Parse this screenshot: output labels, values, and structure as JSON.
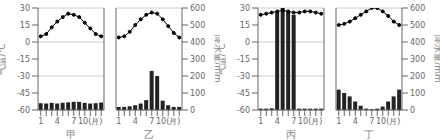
{
  "chart_data": [
    {
      "type": "bar",
      "xlabel": "甲",
      "ylabel": "气温/℃",
      "categories": [
        "1",
        null,
        null,
        "4",
        null,
        null,
        "7",
        null,
        null,
        "10(月)",
        null,
        null
      ],
      "series": [
        {
          "type": "bar",
          "axis": "y2",
          "color": "#222222",
          "values": [
            40,
            38,
            42,
            38,
            42,
            45,
            48,
            48,
            42,
            38,
            40,
            44
          ]
        },
        {
          "type": "line",
          "color": "black",
          "marker": "circle",
          "values": [
            5,
            7,
            13,
            18,
            22,
            25,
            24,
            22,
            17,
            12,
            7,
            5
          ]
        }
      ],
      "ylim": [
        -60,
        30
      ],
      "yticks": [
        30,
        15,
        0,
        -15,
        -30,
        -45,
        -60
      ],
      "y2lim": [
        0,
        600
      ],
      "grid": true
    },
    {
      "type": "bar",
      "xlabel": "乙",
      "y2label": "降水量/mm",
      "categories": [
        "1",
        null,
        null,
        "4",
        null,
        null,
        "7",
        null,
        null,
        "10(月)",
        null,
        null
      ],
      "series": [
        {
          "type": "bar",
          "axis": "y2",
          "color": "#222222",
          "values": [
            18,
            18,
            22,
            28,
            38,
            58,
            230,
            200,
            55,
            28,
            18,
            18
          ]
        },
        {
          "type": "line",
          "color": "black",
          "marker": "circle",
          "values": [
            4,
            5,
            9,
            15,
            20,
            24,
            26,
            25,
            20,
            14,
            8,
            4
          ]
        }
      ],
      "ylim": [
        -60,
        30
      ],
      "yticks": [
        30,
        15,
        0,
        -15,
        -30,
        -45,
        -60
      ],
      "y2lim": [
        0,
        600
      ],
      "y2ticks": [
        0,
        100,
        200,
        300,
        400,
        500,
        600
      ],
      "tick_labels": "x",
      "grid": true
    },
    {
      "type": "bar",
      "xlabel": "丙",
      "ylabel": "气温/℃",
      "categories": [
        "1",
        null,
        null,
        "4",
        null,
        null,
        "7",
        null,
        null,
        "10(月)",
        null,
        null
      ],
      "series": [
        {
          "type": "bar",
          "axis": "y2",
          "color": "#222222",
          "values": [
            8,
            8,
            10,
            580,
            600,
            580,
            560,
            8,
            8,
            8,
            8,
            8
          ]
        },
        {
          "type": "line",
          "color": "black",
          "marker": "circle",
          "values": [
            24,
            25,
            26,
            27,
            28,
            27,
            26,
            26,
            27,
            27,
            26,
            25
          ]
        }
      ],
      "ylim": [
        -60,
        30
      ],
      "yticks": [
        30,
        15,
        0,
        -15,
        -30,
        -45,
        -60
      ],
      "y2lim": [
        0,
        600
      ],
      "grid": true
    },
    {
      "type": "bar",
      "xlabel": "丁",
      "y2label": "降水量/mm",
      "categories": [
        "1",
        null,
        null,
        "4",
        null,
        null,
        "7",
        null,
        null,
        "10(月)",
        null,
        null
      ],
      "series": [
        {
          "type": "bar",
          "axis": "y2",
          "color": "#222222",
          "values": [
            120,
            100,
            80,
            50,
            25,
            8,
            5,
            8,
            20,
            50,
            80,
            120
          ]
        },
        {
          "type": "line",
          "color": "black",
          "marker": "circle",
          "values": [
            15,
            16,
            18,
            21,
            24,
            27,
            30,
            30,
            27,
            23,
            18,
            15
          ]
        }
      ],
      "ylim": [
        -60,
        30
      ],
      "yticks": [
        30,
        15,
        0,
        -15,
        -30,
        -45,
        -60
      ],
      "y2lim": [
        0,
        600
      ],
      "y2ticks": [
        0,
        100,
        200,
        300,
        400,
        500,
        600
      ],
      "tick_labels": "x",
      "grid": true
    }
  ]
}
